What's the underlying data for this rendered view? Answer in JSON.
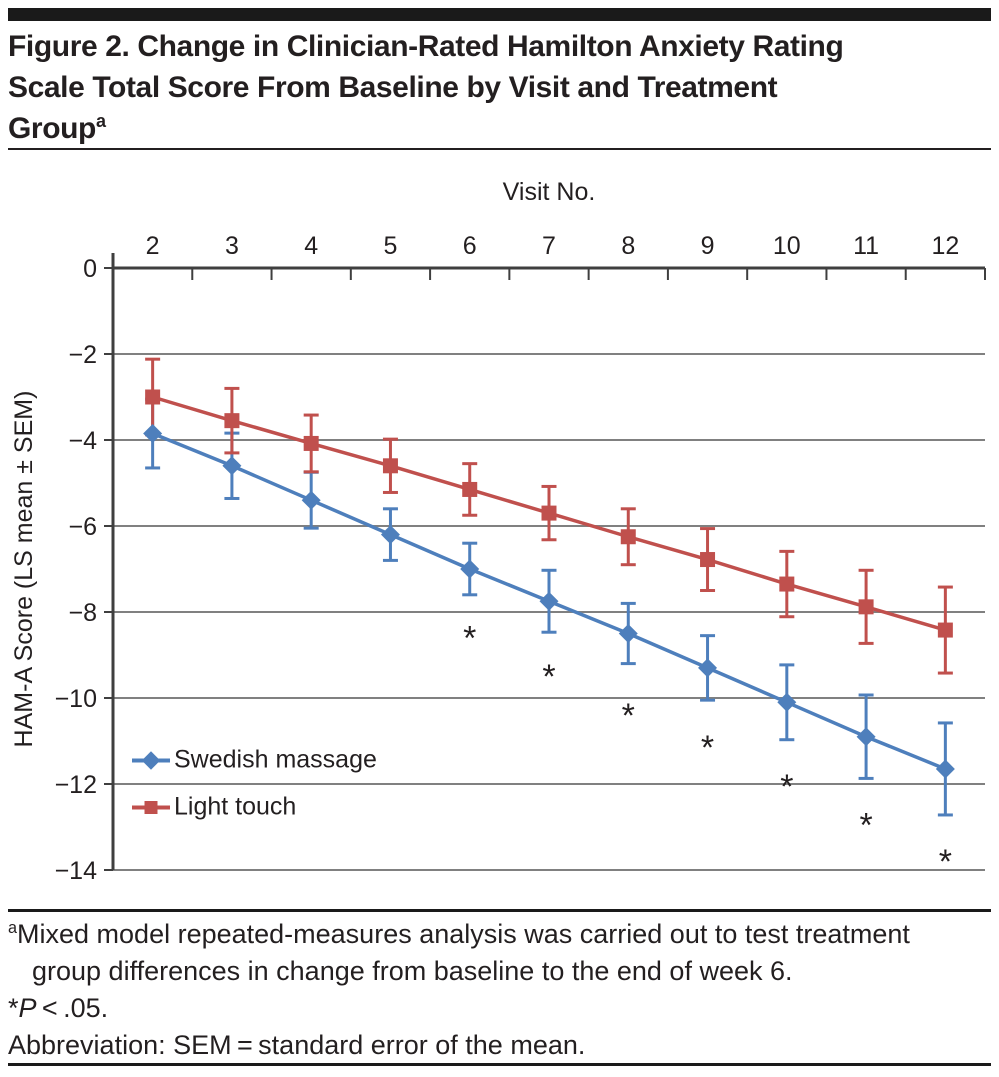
{
  "figure": {
    "title_lines": [
      "Figure 2. Change in Clinician-Rated Hamilton Anxiety Rating",
      "Scale Total Score From Baseline by Visit and Treatment"
    ],
    "title_line_last": "Group",
    "title_superscript": "a"
  },
  "chart_data": {
    "type": "line",
    "x": [
      2,
      3,
      4,
      5,
      6,
      7,
      8,
      9,
      10,
      11,
      12
    ],
    "x_axis": {
      "title": "Visit No.",
      "position": "top",
      "tick_style": "between-categories"
    },
    "y_axis": {
      "title": "HAM-A Score (LS mean ± SEM)",
      "ticks": [
        0,
        -2,
        -4,
        -6,
        -8,
        -10,
        -12,
        -14
      ],
      "range": [
        -14,
        0
      ],
      "grid": true
    },
    "series": [
      {
        "name": "Swedish massage",
        "marker": "diamond",
        "color": "#4e7fbc",
        "values": [
          -3.85,
          -4.6,
          -5.4,
          -6.2,
          -7.0,
          -7.75,
          -8.5,
          -9.3,
          -10.1,
          -10.9,
          -11.65
        ],
        "sem": [
          0.8,
          0.76,
          0.65,
          0.6,
          0.6,
          0.72,
          0.7,
          0.75,
          0.87,
          0.97,
          1.07
        ]
      },
      {
        "name": "Light touch",
        "marker": "square",
        "color": "#c0504d",
        "values": [
          -3.0,
          -3.55,
          -4.08,
          -4.6,
          -5.15,
          -5.7,
          -6.25,
          -6.78,
          -7.35,
          -7.88,
          -8.42
        ],
        "sem": [
          0.88,
          0.75,
          0.66,
          0.62,
          0.6,
          0.62,
          0.65,
          0.72,
          0.76,
          0.85,
          1.0
        ]
      }
    ],
    "significance_marker": "*",
    "significance": [
      {
        "x": 6,
        "y": -8.5
      },
      {
        "x": 7,
        "y": -9.4
      },
      {
        "x": 8,
        "y": -10.3
      },
      {
        "x": 9,
        "y": -11.05
      },
      {
        "x": 10,
        "y": -11.95
      },
      {
        "x": 11,
        "y": -12.85
      },
      {
        "x": 12,
        "y": -13.7
      }
    ],
    "legend": {
      "position": "inside-bottom-left",
      "entries": [
        "Swedish massage",
        "Light touch"
      ]
    },
    "style": {
      "gridline_color": "#808080",
      "axis_color": "#3f3f3f",
      "text_color": "#231f20"
    }
  },
  "footnotes": {
    "a_sup": "a",
    "a_line1": "Mixed model repeated-measures analysis was carried out to test treatment",
    "a_line2": "group differences in change from baseline to the end of week 6.",
    "star": "*",
    "p_letter": "P",
    "p_rest": " < .05.",
    "abbreviation": "Abbreviation: SEM = standard error of the mean."
  }
}
